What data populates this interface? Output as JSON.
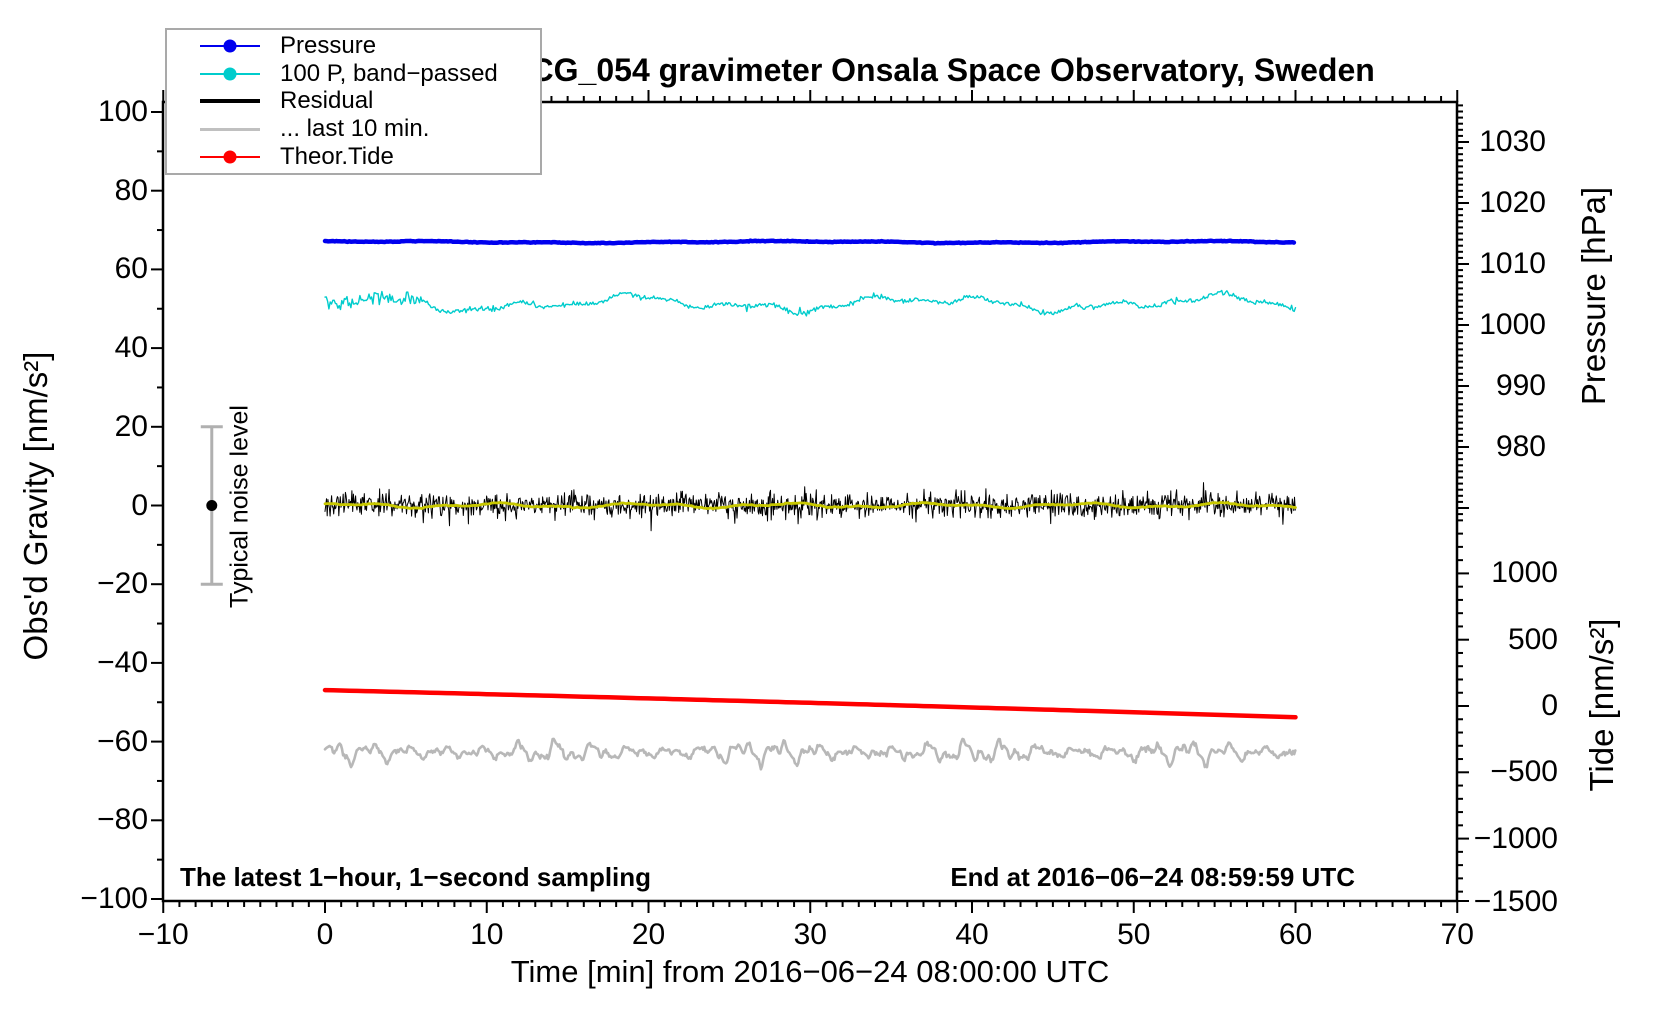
{
  "title": "SCG_054 gravimeter Onsala Space Observatory, Sweden",
  "annotations": {
    "sampling_note": "The latest 1−hour, 1−second sampling",
    "end_note": "End at 2016−06−24 08:59:59 UTC"
  },
  "legend": {
    "items": [
      {
        "label": "Pressure",
        "color": "#0000ee",
        "dot": true,
        "line_width": 2
      },
      {
        "label": "100 P, band−passed",
        "color": "#00cccc",
        "dot": true,
        "line_width": 2
      },
      {
        "label": "Residual",
        "color": "#000000",
        "dot": false,
        "line_width": 4
      },
      {
        "label": "... last 10 min.",
        "color": "#c0c0c0",
        "dot": false,
        "line_width": 3
      },
      {
        "label": "Theor.Tide",
        "color": "#ff0000",
        "dot": true,
        "line_width": 2
      }
    ]
  },
  "chart_data": {
    "type": "line",
    "title": "SCG_054 gravimeter Onsala Space Observatory, Sweden",
    "x_axis": {
      "label": "Time [min] from 2016−06−24 08:00:00 UTC",
      "range": [
        -10,
        70
      ],
      "major_tick": 10,
      "minor_tick": 1,
      "ticks": [
        -10,
        0,
        10,
        20,
        30,
        40,
        50,
        60,
        70
      ],
      "tick_labels": [
        "−10",
        "0",
        "10",
        "20",
        "30",
        "40",
        "50",
        "60",
        "70"
      ]
    },
    "y_axis_left": {
      "label": "Obs'd Gravity [nm/s²]",
      "range": [
        -100,
        100
      ],
      "major_tick": 20,
      "minor_tick": 10,
      "ticks": [
        100,
        80,
        60,
        40,
        20,
        0,
        -20,
        -40,
        -60,
        -80,
        -100
      ],
      "tick_labels": [
        "100",
        "80",
        "60",
        "40",
        "20",
        "0",
        "−20",
        "−40",
        "−60",
        "−80",
        "−100"
      ]
    },
    "y_axis_pressure": {
      "label": "Pressure [hPa]",
      "shown_range_hPa": [
        969,
        1036
      ],
      "major_tick": 10,
      "minor_tick": 1,
      "ticks": [
        1030,
        1020,
        1010,
        1000,
        990,
        980
      ],
      "tick_labels": [
        "1030",
        "1020",
        "1010",
        "1000",
        "990",
        "980"
      ]
    },
    "y_axis_tide": {
      "label": "Tide [nm/s²]",
      "shown_range": [
        -1500,
        1500
      ],
      "major_tick": 500,
      "minor_tick": 100,
      "ticks": [
        1000,
        500,
        0,
        -500,
        -1000,
        -1500
      ],
      "tick_labels": [
        "1000",
        "500",
        "0",
        "−500",
        "−1000",
        "−1500"
      ]
    },
    "grid": false,
    "legend_position": "top-left",
    "data_time_span_min": [
      0,
      60
    ],
    "series": [
      {
        "name": "Pressure",
        "axis": "pressure_hPa",
        "color": "#0000ee",
        "width": 4.5,
        "mean_hPa": 1013.6,
        "variation_hPa": 0.3
      },
      {
        "name": "100 P, band−passed",
        "axis": "gravity_nm_s2",
        "color": "#00cccc",
        "width": 1.4,
        "mean": 51.3,
        "slow_variation": 2.5,
        "jitter": 0.9,
        "extra_jitter_before_min": 6
      },
      {
        "name": "Residual",
        "axis": "gravity_nm_s2",
        "color": "#000000",
        "width": 1,
        "mean": 0,
        "noise_sigma": 1.5,
        "spike_max": 6.4
      },
      {
        "name": "Residual smoothed",
        "axis": "gravity_nm_s2",
        "color": "#c8c800",
        "width": 2.8,
        "mean": 0,
        "variation": 0.7
      },
      {
        "name": "... last 10 min.",
        "axis": "gravity_nm_s2",
        "color": "#b8b8b8",
        "width": 2.6,
        "mean": -62.7,
        "osc_amplitude": 2.8,
        "osc_period_min": [
          2.3,
          1.1,
          0.55
        ]
      },
      {
        "name": "Theor.Tide",
        "axis": "tide_nm_s2",
        "color": "#ff0000",
        "width": 4.5,
        "start_value": 120,
        "end_value": -85,
        "curvature": -0.0069,
        "linear_slope": -3.0
      }
    ],
    "noise_marker": {
      "label": "Typical noise level",
      "x_min": -7,
      "center_value": 0,
      "half_range": 20,
      "bar_color": "#b0b0b0",
      "dot_color": "#000000"
    }
  }
}
